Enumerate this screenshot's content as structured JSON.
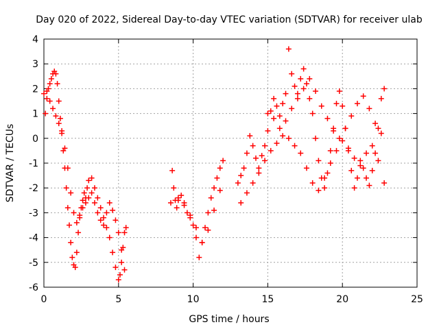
{
  "chart_data": {
    "type": "scatter",
    "title": "Day 020 of 2022, Sidereal Day-to-day VTEC variation (SDTVAR) for receiver ulab",
    "xlabel": "GPS time / hours",
    "ylabel": "SDTVAR / TECUs",
    "xlim": [
      0,
      25
    ],
    "ylim": [
      -6,
      4
    ],
    "x_ticks": [
      0,
      5,
      10,
      15,
      20,
      25
    ],
    "y_ticks": [
      -6,
      -5,
      -4,
      -3,
      -2,
      -1,
      0,
      1,
      2,
      3,
      4
    ],
    "grid": true,
    "marker": "+",
    "series_color": "#ff0000",
    "series": [
      {
        "name": "ulab",
        "x": [
          0.0,
          0.1,
          0.2,
          0.3,
          0.4,
          0.5,
          0.6,
          0.7,
          0.8,
          0.9,
          1.0,
          1.1,
          1.2,
          1.3,
          1.4,
          1.5,
          1.6,
          1.7,
          1.8,
          1.9,
          2.0,
          2.1,
          2.2,
          2.3,
          2.4,
          2.5,
          2.6,
          2.7,
          2.8,
          2.9,
          3.0,
          3.2,
          3.4,
          3.6,
          3.8,
          4.0,
          4.2,
          4.4,
          4.6,
          4.8,
          5.0,
          5.1,
          5.2,
          5.3,
          5.4,
          5.5,
          0.2,
          0.4,
          0.6,
          0.8,
          1.0,
          1.2,
          1.4,
          1.6,
          1.8,
          2.0,
          2.2,
          2.4,
          2.6,
          2.8,
          3.0,
          3.2,
          3.4,
          3.6,
          3.8,
          4.0,
          4.2,
          4.4,
          4.6,
          4.8,
          5.0,
          5.2,
          5.4,
          8.5,
          8.6,
          8.7,
          8.8,
          8.9,
          9.0,
          9.2,
          9.4,
          9.6,
          9.8,
          10.0,
          10.2,
          10.4,
          10.6,
          10.8,
          11.0,
          11.2,
          11.4,
          11.6,
          11.8,
          12.0,
          9.0,
          9.4,
          9.8,
          10.2,
          10.6,
          11.0,
          11.4,
          11.8,
          13.0,
          13.2,
          13.4,
          13.6,
          13.8,
          14.0,
          14.2,
          14.4,
          14.6,
          14.8,
          15.0,
          15.2,
          15.4,
          15.6,
          15.8,
          16.0,
          16.2,
          16.4,
          16.6,
          16.8,
          17.0,
          17.2,
          17.4,
          17.6,
          17.8,
          18.0,
          18.2,
          18.4,
          18.6,
          18.8,
          19.0,
          19.2,
          19.4,
          19.6,
          19.8,
          20.0,
          20.2,
          20.4,
          20.6,
          20.8,
          21.0,
          21.2,
          21.4,
          21.6,
          21.8,
          22.0,
          22.2,
          22.4,
          22.6,
          22.8,
          13.2,
          13.6,
          14.0,
          14.4,
          14.8,
          15.2,
          15.6,
          16.0,
          16.4,
          16.8,
          17.2,
          17.6,
          18.0,
          18.4,
          18.8,
          19.2,
          19.6,
          20.0,
          20.4,
          20.8,
          21.2,
          21.6,
          22.0,
          22.4,
          22.8,
          15.0,
          15.4,
          15.8,
          16.2,
          16.6,
          17.0,
          17.4,
          17.8,
          18.2,
          18.6,
          19.0,
          19.4,
          19.8,
          20.2,
          20.6,
          21.0,
          21.4,
          21.8,
          22.2,
          22.6
        ],
        "y": [
          1.8,
          1.0,
          1.6,
          2.0,
          2.2,
          2.4,
          2.6,
          2.7,
          2.6,
          2.2,
          1.5,
          0.8,
          0.2,
          -0.5,
          -1.2,
          -2.0,
          -2.8,
          -3.5,
          -4.2,
          -4.8,
          -5.1,
          -5.2,
          -4.6,
          -3.8,
          -3.2,
          -2.8,
          -2.5,
          -2.2,
          -2.4,
          -2.0,
          -1.7,
          -1.6,
          -2.0,
          -2.4,
          -2.8,
          -3.2,
          -3.6,
          -4.0,
          -4.6,
          -5.2,
          -5.7,
          -5.5,
          -5.0,
          -4.4,
          -3.8,
          -3.6,
          1.9,
          1.5,
          1.2,
          0.9,
          0.6,
          0.3,
          -0.4,
          -1.2,
          -2.2,
          -3.0,
          -3.4,
          -3.1,
          -2.8,
          -2.6,
          -2.4,
          -2.2,
          -2.6,
          -3.0,
          -3.3,
          -3.5,
          -3.0,
          -2.6,
          -2.9,
          -3.3,
          -3.8,
          -4.5,
          -5.3,
          -2.6,
          -1.3,
          -2.0,
          -2.5,
          -2.8,
          -2.5,
          -2.3,
          -2.6,
          -3.0,
          -3.2,
          -3.5,
          -4.0,
          -4.8,
          -4.2,
          -3.6,
          -3.0,
          -2.4,
          -2.0,
          -1.6,
          -1.2,
          -0.9,
          -2.4,
          -2.7,
          -3.1,
          -3.6,
          -4.2,
          -3.7,
          -2.9,
          -2.1,
          -1.8,
          -1.5,
          -1.2,
          -0.6,
          0.1,
          -0.3,
          -0.8,
          -1.2,
          -0.7,
          -0.3,
          0.3,
          1.1,
          1.6,
          1.3,
          0.9,
          1.4,
          1.8,
          3.6,
          2.6,
          2.1,
          1.8,
          2.4,
          2.8,
          2.2,
          1.6,
          1.0,
          0.0,
          -0.9,
          -1.6,
          -2.0,
          -1.4,
          -0.5,
          0.4,
          1.4,
          1.9,
          1.3,
          0.4,
          -0.5,
          -1.3,
          -2.0,
          -1.6,
          -0.9,
          -1.2,
          -1.6,
          -1.9,
          -1.3,
          -0.6,
          0.4,
          1.6,
          2.0,
          -2.6,
          -2.2,
          -1.8,
          -1.4,
          -0.9,
          -0.5,
          -0.2,
          0.1,
          0.0,
          -0.3,
          -0.6,
          -1.2,
          -1.8,
          -2.1,
          -1.6,
          -1.0,
          -0.5,
          -0.1,
          -0.4,
          -0.8,
          -1.1,
          -0.6,
          -0.3,
          -0.9,
          -1.8,
          1.0,
          0.8,
          0.4,
          0.7,
          1.2,
          1.6,
          2.0,
          2.4,
          1.9,
          1.3,
          0.8,
          0.3,
          0.0,
          0.4,
          0.9,
          1.4,
          1.7,
          1.2,
          0.6,
          0.2
        ]
      }
    ]
  }
}
